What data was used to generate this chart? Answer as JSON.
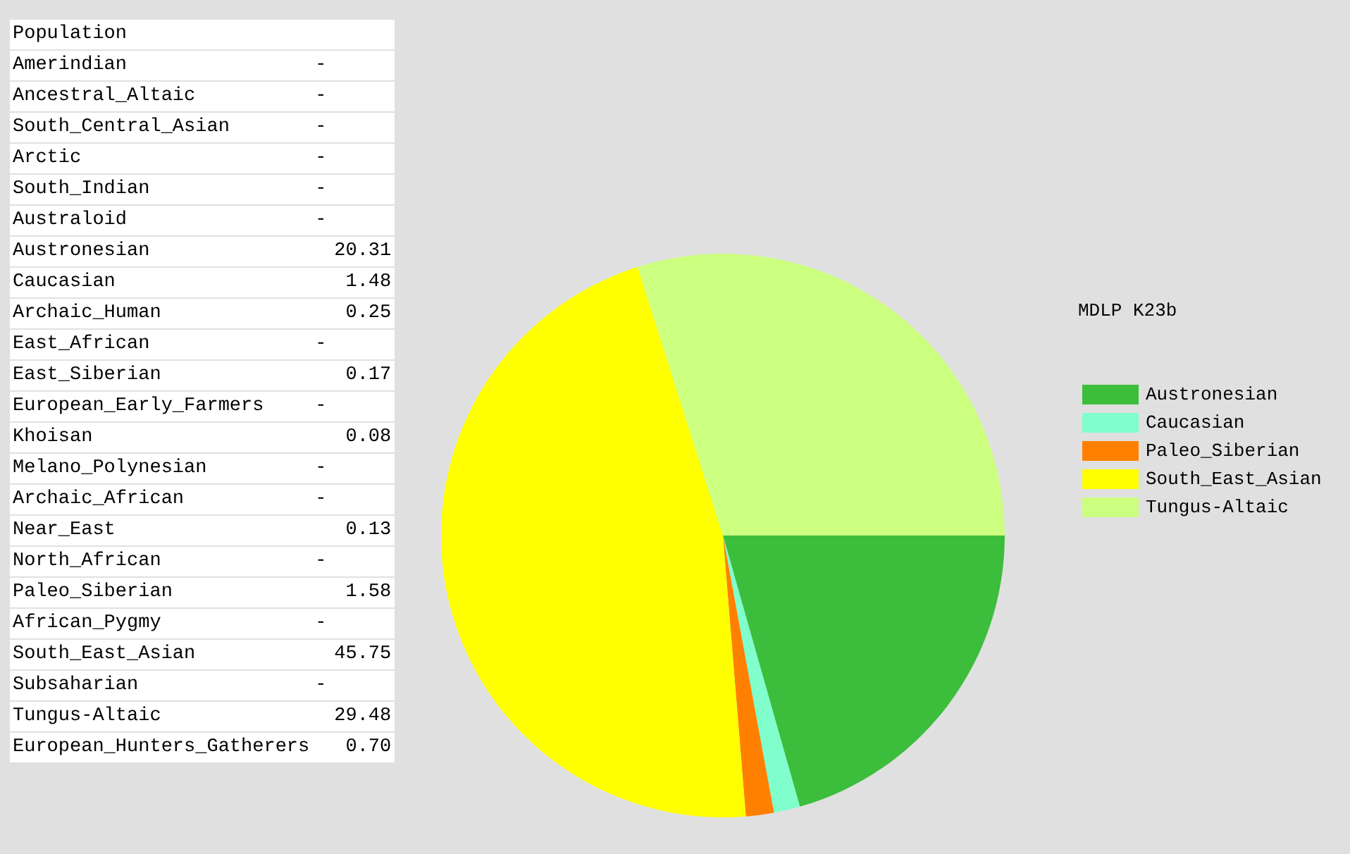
{
  "chart_data": [
    {
      "type": "other",
      "title": "Population",
      "categories": [
        "Amerindian",
        "Ancestral_Altaic",
        "South_Central_Asian",
        "Arctic",
        "South_Indian",
        "Australoid",
        "Austronesian",
        "Caucasian",
        "Archaic_Human",
        "East_African",
        "East_Siberian",
        "European_Early_Farmers",
        "Khoisan",
        "Melano_Polynesian",
        "Archaic_African",
        "Near_East",
        "North_African",
        "Paleo_Siberian",
        "African_Pygmy",
        "South_East_Asian",
        "Subsaharian",
        "Tungus-Altaic",
        "European_Hunters_Gatherers"
      ],
      "values": [
        null,
        null,
        null,
        null,
        null,
        null,
        20.31,
        1.48,
        0.25,
        null,
        0.17,
        null,
        0.08,
        null,
        null,
        0.13,
        null,
        1.58,
        null,
        45.75,
        null,
        29.48,
        0.7
      ],
      "value_labels": [
        "-",
        "-",
        "-",
        "-",
        "-",
        "-",
        "20.31",
        "1.48",
        "0.25",
        "-",
        "0.17",
        "-",
        "0.08",
        "-",
        "-",
        "0.13",
        "-",
        "1.58",
        "-",
        "45.75",
        "-",
        "29.48",
        "0.70"
      ]
    },
    {
      "type": "pie",
      "legend_title": "MDLP K23b",
      "legend": "right",
      "categories": [
        "Austronesian",
        "Caucasian",
        "Paleo_Siberian",
        "South_East_Asian",
        "Tungus-Altaic"
      ],
      "values": [
        20.31,
        1.48,
        1.58,
        45.75,
        29.48
      ],
      "colors": [
        "#3cbe3c",
        "#80ffcc",
        "#ff8000",
        "#ffff00",
        "#ccff80"
      ]
    }
  ]
}
